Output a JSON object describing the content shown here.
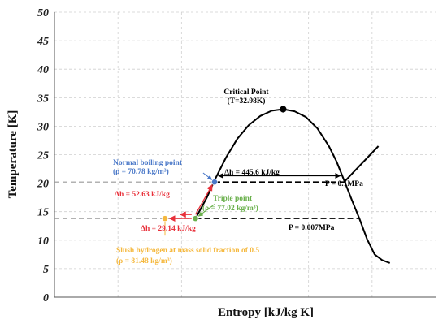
{
  "chart_data": {
    "type": "line",
    "title": "",
    "xlabel": "Entropy [kJ/kg K]",
    "ylabel": "Temperature [K]",
    "ylim": [
      0,
      50
    ],
    "yticks": [
      "0",
      "5",
      "10",
      "15",
      "20",
      "25",
      "30",
      "35",
      "40",
      "45",
      "50"
    ],
    "xlim": [
      0,
      100
    ],
    "xgrid_count": 6,
    "grid": true,
    "series": [
      {
        "color": "#000000",
        "points": [
          [
            37,
            13.8
          ],
          [
            40,
            17.5
          ],
          [
            42,
            20.5
          ],
          [
            45,
            24.5
          ],
          [
            48,
            27.8
          ],
          [
            51,
            30.2
          ],
          [
            54,
            31.8
          ],
          [
            57,
            32.7
          ],
          [
            60,
            32.98
          ],
          [
            63,
            32.6
          ],
          [
            66,
            31.6
          ],
          [
            69,
            29.6
          ],
          [
            72,
            26.5
          ],
          [
            74,
            23.8
          ],
          [
            76,
            20.5
          ],
          [
            78,
            17.1
          ],
          [
            80,
            13.8
          ],
          [
            82,
            10.2
          ],
          [
            84,
            7.5
          ],
          [
            86,
            6.5
          ],
          [
            88,
            6.0
          ]
        ]
      },
      {
        "color": "#000000",
        "points": [
          [
            76,
            20.2
          ],
          [
            85,
            26.5
          ]
        ]
      }
    ],
    "isobars": [
      {
        "label": "P = 0.1MPa",
        "y": 20.2,
        "from": 42,
        "to": 76
      },
      {
        "label": "P = 0.007MPa",
        "y": 13.8,
        "from": 37,
        "to": 80
      }
    ],
    "reference_lines": [
      {
        "y": 20.2,
        "from": 0,
        "to": 42
      },
      {
        "y": 13.8,
        "from": 0,
        "to": 37
      }
    ],
    "points": [
      {
        "name": "Critical Point",
        "x": 60,
        "y": 32.98,
        "color": "#000000"
      },
      {
        "name": "Normal boiling point",
        "x": 42,
        "y": 20.2,
        "color": "#4a78c8"
      },
      {
        "name": "Triple point",
        "x": 37,
        "y": 13.8,
        "color": "#6ab04c"
      },
      {
        "name": "Slush hydrogen",
        "x": 29,
        "y": 13.8,
        "color": "#f5b83d"
      }
    ],
    "annotations": {
      "critical_point": "Critical Point",
      "critical_temp": "(T=32.98K)",
      "boiling_point": "Normal boiling point",
      "boiling_rho": "(ρ = 70.78 kg/m³)",
      "triple_point": "Triple point",
      "triple_rho": "(ρ = 77.02 kg/m³)",
      "slush_line1": "Slush hydrogen at mass solid fraction of 0.5",
      "slush_line2": "(ρ = 81.48 kg/m³)",
      "dh_vap": "Δh = 445.6 kJ/kg",
      "dh_boil": "Δh = 52.63 kJ/kg",
      "dh_fus": "Δh = 29.14 kJ/kg",
      "p_high": "P = 0.1MPa",
      "p_low": "P = 0.007MPa"
    },
    "colors": {
      "curve": "#000000",
      "boiling": "#4a78c8",
      "triple": "#6ab04c",
      "slush": "#f5b83d",
      "arrow_red": "#e8303a",
      "grid": "#cfcfcf",
      "reference": "#999999"
    }
  }
}
